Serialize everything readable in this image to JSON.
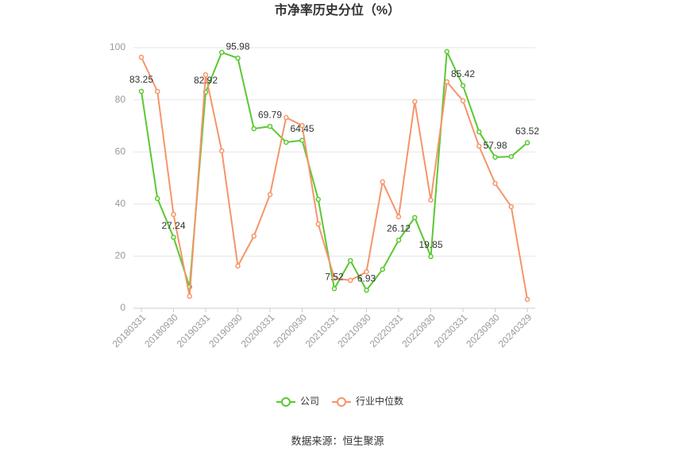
{
  "chart_data": {
    "type": "line",
    "title": "市净率历史分位（%）",
    "source": "数据来源：恒生聚源",
    "categories": [
      "20180331",
      null,
      "20180930",
      null,
      "20190331",
      null,
      "20190930",
      null,
      "20200331",
      null,
      "20200930",
      null,
      "20210331",
      null,
      "20210930",
      null,
      "20220331",
      null,
      "20220930",
      null,
      "20230331",
      null,
      "20230930",
      null,
      "20240329"
    ],
    "series": [
      {
        "name": "公司",
        "color": "#5ac832",
        "data_label_step": 2,
        "values": [
          83.25,
          42.1,
          27.24,
          8.2,
          82.92,
          98.2,
          95.98,
          68.9,
          69.79,
          63.7,
          64.45,
          41.8,
          7.52,
          18.3,
          6.93,
          14.9,
          26.12,
          34.8,
          19.85,
          98.5,
          85.42,
          67.7,
          57.98,
          58.2,
          63.52
        ]
      },
      {
        "name": "行业中位数",
        "color": "#f5956a",
        "values": [
          96.3,
          83.2,
          36.0,
          4.6,
          89.6,
          60.4,
          16.2,
          27.7,
          43.6,
          73.2,
          70.1,
          32.3,
          11.6,
          10.7,
          14.0,
          48.5,
          35.1,
          79.3,
          41.5,
          86.9,
          79.6,
          62.2,
          47.9,
          39.0,
          3.4
        ]
      }
    ],
    "ylim": [
      0,
      100
    ],
    "yticks": [
      0,
      20,
      40,
      60,
      80,
      100
    ],
    "grid": true
  }
}
